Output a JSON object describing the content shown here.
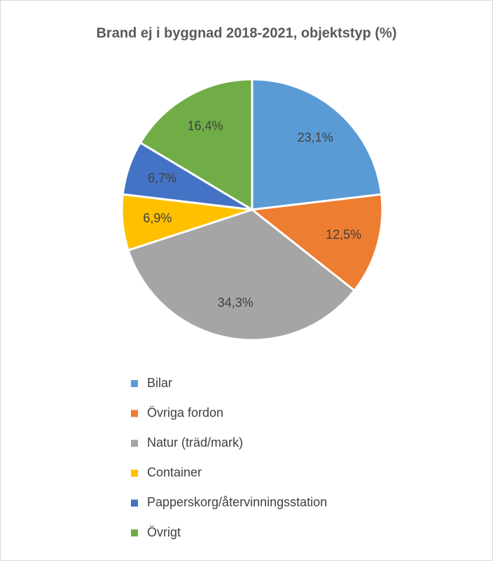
{
  "chart_data": {
    "type": "pie",
    "title": "Brand ej i byggnad 2018-2021, objektstyp (%)",
    "categories": [
      "Bilar",
      "Övriga fordon",
      "Natur (träd/mark)",
      "Container",
      "Papperskorg/återvinningsstation",
      "Övrigt"
    ],
    "values": [
      23.1,
      12.5,
      34.3,
      6.9,
      6.7,
      16.4
    ],
    "value_labels": [
      "23,1%",
      "12,5%",
      "34,3%",
      "6,9%",
      "6,7%",
      "16,4%"
    ],
    "colors": [
      "#5b9bd5",
      "#ed7d31",
      "#a5a5a5",
      "#ffc000",
      "#4472c4",
      "#70ad47"
    ],
    "legend": "bottom"
  }
}
